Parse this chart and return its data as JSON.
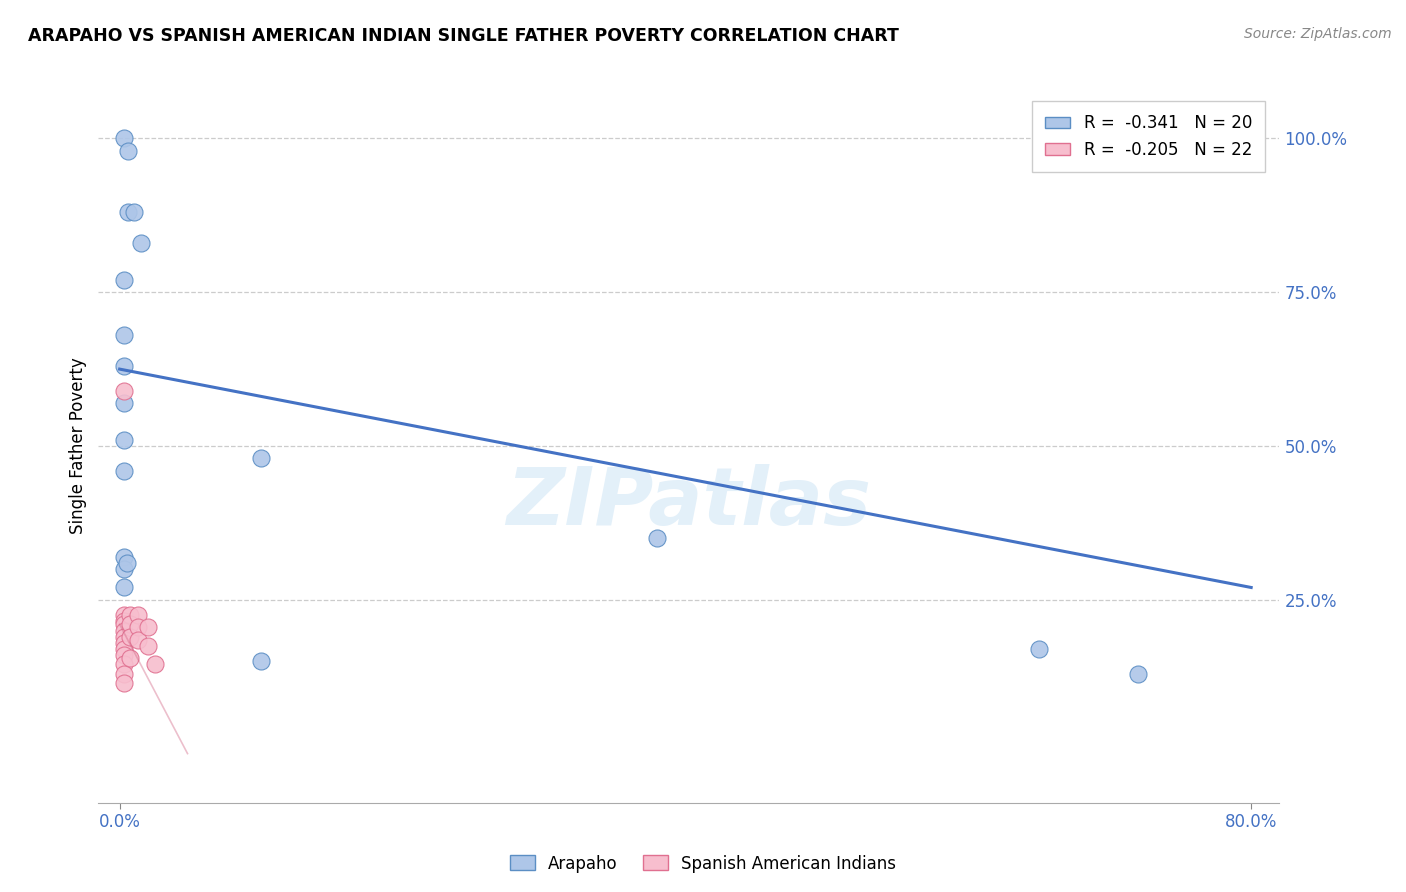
{
  "title": "ARAPAHO VS SPANISH AMERICAN INDIAN SINGLE FATHER POVERTY CORRELATION CHART",
  "source": "Source: ZipAtlas.com",
  "ylabel": "Single Father Poverty",
  "xlim": [
    -0.015,
    0.82
  ],
  "ylim": [
    -0.08,
    1.08
  ],
  "arapaho_R": "-0.341",
  "arapaho_N": "20",
  "spanish_R": "-0.205",
  "spanish_N": "22",
  "arapaho_color": "#aec6e8",
  "arapaho_edge_color": "#5b8ec4",
  "arapaho_line_color": "#4472c4",
  "spanish_color": "#f7bece",
  "spanish_edge_color": "#e07090",
  "spanish_line_color": "#d06080",
  "watermark": "ZIPatlas",
  "arapaho_x": [
    0.003,
    0.006,
    0.006,
    0.01,
    0.015,
    0.003,
    0.003,
    0.003,
    0.003,
    0.003,
    0.003,
    0.003,
    0.003,
    0.003,
    0.38,
    0.005,
    0.1,
    0.1,
    0.65,
    0.72
  ],
  "arapaho_y": [
    1.0,
    0.98,
    0.88,
    0.88,
    0.83,
    0.77,
    0.68,
    0.63,
    0.57,
    0.51,
    0.46,
    0.32,
    0.3,
    0.27,
    0.35,
    0.31,
    0.48,
    0.15,
    0.17,
    0.13
  ],
  "spanish_x": [
    0.003,
    0.003,
    0.003,
    0.003,
    0.003,
    0.003,
    0.003,
    0.003,
    0.003,
    0.003,
    0.003,
    0.003,
    0.007,
    0.007,
    0.007,
    0.007,
    0.013,
    0.013,
    0.013,
    0.02,
    0.02,
    0.025
  ],
  "spanish_y": [
    0.59,
    0.225,
    0.215,
    0.21,
    0.2,
    0.19,
    0.18,
    0.17,
    0.16,
    0.145,
    0.13,
    0.115,
    0.225,
    0.21,
    0.19,
    0.155,
    0.225,
    0.205,
    0.185,
    0.205,
    0.175,
    0.145
  ],
  "arapaho_line_x": [
    0.0,
    0.8
  ],
  "arapaho_line_y": [
    0.625,
    0.27
  ],
  "spanish_line_x": [
    0.0,
    0.048
  ],
  "spanish_line_y": [
    0.21,
    0.0
  ]
}
